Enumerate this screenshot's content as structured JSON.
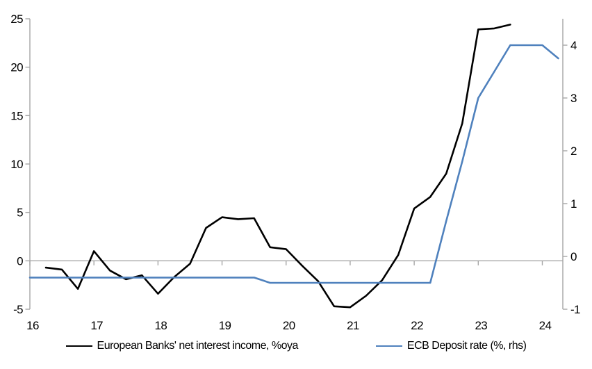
{
  "chart_data": {
    "type": "line",
    "title": "",
    "x_axis": {
      "tick_labels": [
        "16",
        "17",
        "18",
        "19",
        "20",
        "21",
        "22",
        "23",
        "24"
      ],
      "ticks": [
        16,
        17,
        18,
        19,
        20,
        21,
        22,
        23,
        24
      ],
      "range": [
        16,
        24.32
      ],
      "axis_position": "at-zero-of-left-axis"
    },
    "left_axis": {
      "tick_labels": [
        "25",
        "20",
        "15",
        "10",
        "5",
        "0",
        "-5"
      ],
      "ticks": [
        25,
        20,
        15,
        10,
        5,
        0,
        -5
      ],
      "range": [
        -5,
        25
      ]
    },
    "right_axis": {
      "tick_labels": [
        "4",
        "3",
        "2",
        "1",
        "0",
        "-1"
      ],
      "ticks": [
        4,
        3,
        2,
        1,
        0,
        -1
      ],
      "range": [
        -1,
        4.5
      ]
    },
    "grid": "zero-line-only",
    "legend_position": "bottom-center",
    "series": [
      {
        "name": "European Banks' net interest income, %oya",
        "color": "#000000",
        "axis": "left",
        "x": [
          16.25,
          16.5,
          16.75,
          17.0,
          17.25,
          17.5,
          17.75,
          18.0,
          18.25,
          18.5,
          18.75,
          19.0,
          19.25,
          19.5,
          19.75,
          20.0,
          20.25,
          20.5,
          20.75,
          21.0,
          21.25,
          21.5,
          21.75,
          22.0,
          22.25,
          22.5,
          22.75,
          23.0,
          23.25,
          23.5
        ],
        "values": [
          -0.7,
          -0.9,
          -2.9,
          1.0,
          -1.0,
          -1.9,
          -1.5,
          -3.4,
          -1.7,
          -0.3,
          3.4,
          4.5,
          4.3,
          4.4,
          1.4,
          1.2,
          -0.5,
          -2.1,
          -4.7,
          -4.8,
          -3.6,
          -2.0,
          0.6,
          5.4,
          6.6,
          9.0,
          14.2,
          23.9,
          24.0,
          24.4
        ]
      },
      {
        "name": "ECB Deposit rate (%, rhs)",
        "color": "#4F81BD",
        "axis": "right",
        "x": [
          16.0,
          16.25,
          16.5,
          16.75,
          17.0,
          17.25,
          17.5,
          17.75,
          18.0,
          18.25,
          18.5,
          18.75,
          19.0,
          19.25,
          19.5,
          19.75,
          20.0,
          20.25,
          20.5,
          20.75,
          21.0,
          21.25,
          21.5,
          21.75,
          22.0,
          22.25,
          22.5,
          22.75,
          23.0,
          23.25,
          23.5,
          23.75,
          24.0,
          24.25
        ],
        "values": [
          -0.4,
          -0.4,
          -0.4,
          -0.4,
          -0.4,
          -0.4,
          -0.4,
          -0.4,
          -0.4,
          -0.4,
          -0.4,
          -0.4,
          -0.4,
          -0.4,
          -0.4,
          -0.5,
          -0.5,
          -0.5,
          -0.5,
          -0.5,
          -0.5,
          -0.5,
          -0.5,
          -0.5,
          -0.5,
          -0.5,
          0.67,
          1.8,
          3.0,
          3.5,
          4.0,
          4.0,
          4.0,
          3.75
        ]
      }
    ]
  },
  "legend": {
    "series1_label": "European Banks' net interest income, %oya",
    "series2_label": "ECB Deposit rate (%, rhs)"
  },
  "colors": {
    "series1": "#000000",
    "series2": "#4F81BD",
    "axis": "#A6A6A6",
    "text": "#000000",
    "background": "#FFFFFF"
  }
}
